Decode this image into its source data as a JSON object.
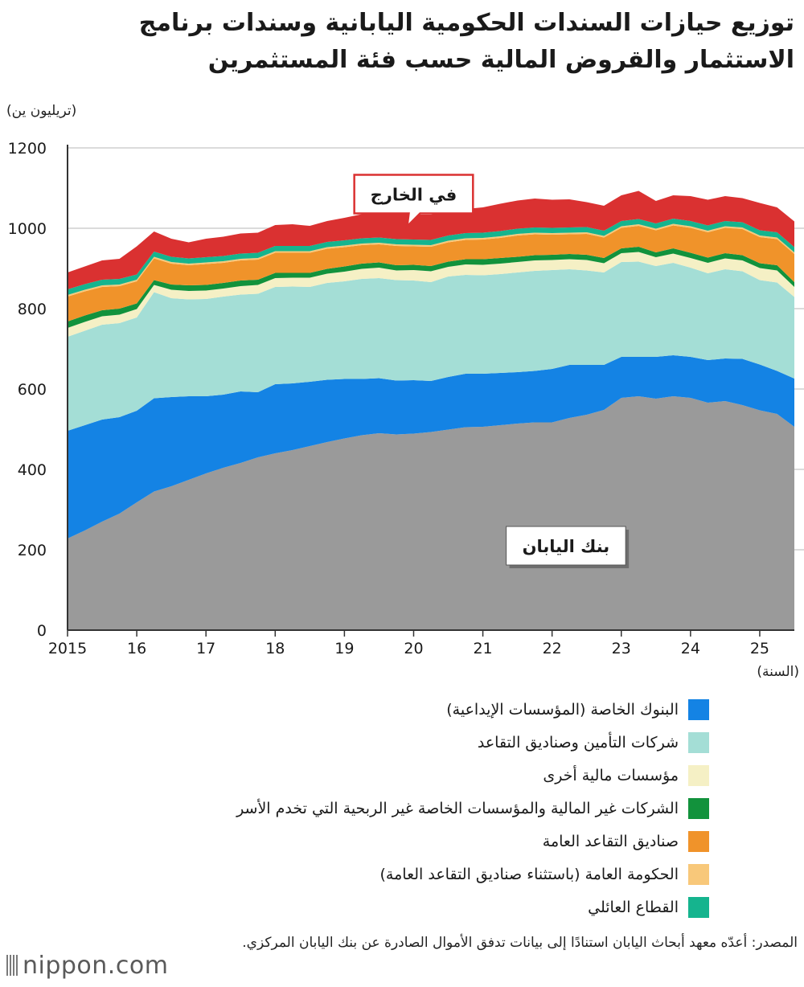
{
  "title": "توزيع حيازات السندات الحكومية اليابانية وسندات برنامج الاستثمار والقروض المالية حسب فئة المستثمرين",
  "source": "المصدر: أعدّه معهد أبحاث اليابان استنادًا إلى بيانات تدفق الأموال الصادرة عن بنك اليابان المركزي.",
  "logo": "nippon.com",
  "chart_data": {
    "type": "area",
    "stacked": true,
    "yunit": "(تريليون ين)",
    "xunit": "(السنة)",
    "ylim": [
      0,
      1200
    ],
    "yticks": [
      0,
      200,
      400,
      600,
      800,
      1000,
      1200
    ],
    "xlim": [
      2015,
      2026
    ],
    "xticks": [
      {
        "value": 2015,
        "label": "2015"
      },
      {
        "value": 2016,
        "label": "16"
      },
      {
        "value": 2017,
        "label": "17"
      },
      {
        "value": 2018,
        "label": "18"
      },
      {
        "value": 2019,
        "label": "19"
      },
      {
        "value": 2020,
        "label": "20"
      },
      {
        "value": 2021,
        "label": "21"
      },
      {
        "value": 2022,
        "label": "22"
      },
      {
        "value": 2023,
        "label": "23"
      },
      {
        "value": 2024,
        "label": "24"
      },
      {
        "value": 2025,
        "label": "25"
      }
    ],
    "grid": true,
    "x": [
      2015.0,
      2015.25,
      2015.5,
      2015.75,
      2016.0,
      2016.25,
      2016.5,
      2016.75,
      2017.0,
      2017.25,
      2017.5,
      2017.75,
      2018.0,
      2018.25,
      2018.5,
      2018.75,
      2019.0,
      2019.25,
      2019.5,
      2019.75,
      2020.0,
      2020.25,
      2020.5,
      2020.75,
      2021.0,
      2021.25,
      2021.5,
      2021.75,
      2022.0,
      2022.25,
      2022.5,
      2022.75,
      2023.0,
      2023.25,
      2023.5,
      2023.75,
      2024.0,
      2024.25,
      2024.5,
      2024.75,
      2025.0,
      2025.25,
      2025.5
    ],
    "series": [
      {
        "name": "بنك اليابان",
        "color": "#9a9a9a",
        "values": [
          228,
          248,
          270,
          290,
          318,
          345,
          358,
          374,
          390,
          404,
          416,
          430,
          440,
          448,
          458,
          468,
          477,
          485,
          490,
          487,
          489,
          493,
          499,
          505,
          506,
          510,
          514,
          517,
          517,
          528,
          536,
          548,
          578,
          582,
          576,
          582,
          578,
          566,
          570,
          560,
          547,
          538,
          506
        ]
      },
      {
        "name": "البنوك الخاصة (المؤسسات الإيداعية)",
        "color": "#1483e4",
        "values": [
          268,
          262,
          254,
          240,
          228,
          232,
          222,
          208,
          192,
          182,
          178,
          162,
          172,
          166,
          160,
          155,
          148,
          140,
          137,
          134,
          133,
          127,
          131,
          133,
          132,
          130,
          128,
          128,
          133,
          132,
          124,
          112,
          102,
          98,
          104,
          102,
          102,
          106,
          106,
          115,
          114,
          107,
          120
        ]
      },
      {
        "name": "شركات التأمين وصناديق التقاعد",
        "color": "#a4ded6",
        "values": [
          234,
          235,
          236,
          234,
          232,
          264,
          246,
          241,
          242,
          244,
          241,
          245,
          242,
          241,
          236,
          241,
          243,
          249,
          249,
          250,
          248,
          246,
          250,
          246,
          245,
          246,
          248,
          249,
          246,
          238,
          235,
          230,
          236,
          237,
          226,
          230,
          222,
          216,
          222,
          218,
          210,
          220,
          203
        ]
      },
      {
        "name": "مؤسسات مالية أخرى",
        "color": "#f5f0c5",
        "values": [
          22,
          22,
          21,
          21,
          21,
          18,
          21,
          21,
          21,
          20,
          21,
          22,
          22,
          22,
          23,
          23,
          24,
          25,
          26,
          24,
          26,
          27,
          24,
          26,
          26,
          26,
          26,
          26,
          25,
          25,
          26,
          23,
          22,
          24,
          22,
          23,
          24,
          26,
          27,
          27,
          30,
          30,
          25
        ]
      },
      {
        "name": "الشركات غير المالية والمؤسسات الخاصة غير الربحية التي تخدم الأسر",
        "color": "#12923c",
        "values": [
          16,
          16,
          15,
          15,
          14,
          12,
          13,
          14,
          14,
          14,
          14,
          13,
          13,
          12,
          12,
          12,
          13,
          13,
          13,
          13,
          13,
          13,
          13,
          13,
          14,
          14,
          13,
          13,
          13,
          13,
          13,
          13,
          12,
          13,
          12,
          13,
          13,
          13,
          13,
          13,
          12,
          13,
          12
        ]
      },
      {
        "name": "صناديق التقاعد العامة",
        "color": "#f0932a",
        "values": [
          62,
          60,
          58,
          56,
          55,
          54,
          52,
          50,
          52,
          50,
          50,
          50,
          50,
          50,
          50,
          50,
          48,
          46,
          45,
          48,
          46,
          48,
          48,
          48,
          49,
          50,
          53,
          52,
          50,
          49,
          52,
          51,
          51,
          52,
          55,
          57,
          62,
          63,
          63,
          65,
          65,
          65,
          70
        ]
      },
      {
        "name": "الحكومة العامة (باستثناء صناديق التقاعد العامة)",
        "color": "#f8c87a",
        "values": [
          4,
          4,
          4,
          4,
          4,
          4,
          4,
          4,
          4,
          4,
          4,
          4,
          4,
          4,
          4,
          4,
          4,
          4,
          4,
          4,
          4,
          4,
          4,
          4,
          4,
          4,
          4,
          4,
          4,
          4,
          4,
          4,
          4,
          4,
          4,
          4,
          4,
          4,
          4,
          4,
          4,
          4,
          4
        ]
      },
      {
        "name": "القطاع العائلي",
        "color": "#15b48e",
        "values": [
          14,
          14,
          14,
          14,
          13,
          13,
          13,
          13,
          13,
          13,
          13,
          13,
          13,
          13,
          13,
          13,
          13,
          13,
          13,
          13,
          13,
          13,
          13,
          13,
          13,
          13,
          13,
          13,
          13,
          13,
          13,
          13,
          13,
          13,
          13,
          13,
          13,
          13,
          13,
          13,
          13,
          13,
          13
        ]
      },
      {
        "name": "في الخارج",
        "color": "#da3131",
        "values": [
          42,
          44,
          48,
          50,
          70,
          50,
          45,
          40,
          46,
          48,
          50,
          50,
          52,
          54,
          50,
          52,
          56,
          60,
          65,
          66,
          62,
          63,
          62,
          60,
          63,
          68,
          70,
          72,
          70,
          70,
          62,
          62,
          64,
          70,
          56,
          58,
          62,
          64,
          62,
          60,
          68,
          62,
          64
        ]
      }
    ],
    "annotations": [
      {
        "series": "بنك اليابان",
        "text": "بنك اليابان",
        "x": 2022.2,
        "y": 210,
        "callout": false
      },
      {
        "series": "في الخارج",
        "text": "في الخارج",
        "x": 2020.0,
        "y": 1085,
        "callout": true
      }
    ]
  }
}
